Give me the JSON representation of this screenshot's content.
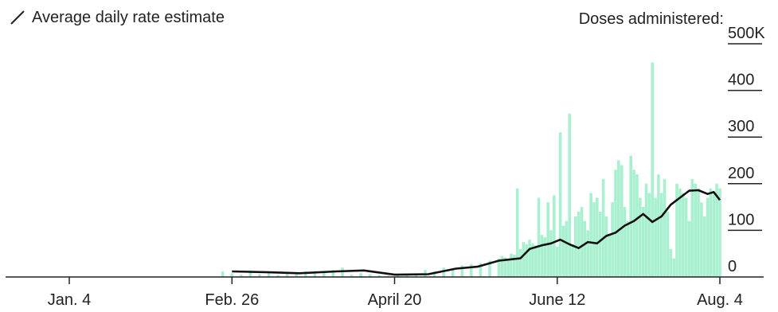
{
  "legend": {
    "line_label": "Average daily rate estimate",
    "icon": "diagonal-line-icon"
  },
  "axis_title": "Doses administered:",
  "colors": {
    "bar": "#a8f0cf",
    "line": "#111111",
    "axis": "#222222",
    "text": "#222222"
  },
  "chart_data": {
    "type": "bar",
    "overlay": "line",
    "x_tick_labels": [
      "Jan. 4",
      "Feb. 26",
      "April 20",
      "June 12",
      "Aug. 4"
    ],
    "y_tick_labels": [
      "500K",
      "400",
      "300",
      "200",
      "100",
      "0"
    ],
    "y_ticks": [
      500,
      400,
      300,
      200,
      100,
      0
    ],
    "ylim": [
      0,
      500
    ],
    "y_unit": "thousand doses",
    "grid": false,
    "legend_position": "top-left",
    "series": [
      {
        "type": "bar",
        "x": [
          "2021-02-23",
          "2021-02-26",
          "2021-03-01",
          "2021-03-04",
          "2021-03-07",
          "2021-03-10",
          "2021-03-13",
          "2021-03-16",
          "2021-03-19",
          "2021-03-22",
          "2021-03-25",
          "2021-03-28",
          "2021-03-31",
          "2021-04-03",
          "2021-04-06",
          "2021-04-09",
          "2021-04-12",
          "2021-04-15",
          "2021-04-18",
          "2021-04-21",
          "2021-04-24",
          "2021-04-27",
          "2021-04-30",
          "2021-05-03",
          "2021-05-06",
          "2021-05-09",
          "2021-05-12",
          "2021-05-15",
          "2021-05-18",
          "2021-05-21",
          "2021-05-24",
          "2021-05-25",
          "2021-05-26",
          "2021-05-27",
          "2021-05-28",
          "2021-05-29",
          "2021-05-30",
          "2021-05-31",
          "2021-06-01",
          "2021-06-02",
          "2021-06-03",
          "2021-06-04",
          "2021-06-05",
          "2021-06-06",
          "2021-06-07",
          "2021-06-08",
          "2021-06-09",
          "2021-06-10",
          "2021-06-11",
          "2021-06-12",
          "2021-06-13",
          "2021-06-14",
          "2021-06-15",
          "2021-06-16",
          "2021-06-17",
          "2021-06-18",
          "2021-06-19",
          "2021-06-20",
          "2021-06-21",
          "2021-06-22",
          "2021-06-23",
          "2021-06-24",
          "2021-06-25",
          "2021-06-26",
          "2021-06-27",
          "2021-06-28",
          "2021-06-29",
          "2021-06-30",
          "2021-07-01",
          "2021-07-02",
          "2021-07-03",
          "2021-07-04",
          "2021-07-05",
          "2021-07-06",
          "2021-07-07",
          "2021-07-08",
          "2021-07-09",
          "2021-07-10",
          "2021-07-11",
          "2021-07-12",
          "2021-07-13",
          "2021-07-14",
          "2021-07-15",
          "2021-07-16",
          "2021-07-17",
          "2021-07-18",
          "2021-07-19",
          "2021-07-20",
          "2021-07-21",
          "2021-07-22",
          "2021-07-23",
          "2021-07-24",
          "2021-07-25",
          "2021-07-26",
          "2021-07-27",
          "2021-07-28",
          "2021-07-29",
          "2021-07-30",
          "2021-07-31",
          "2021-08-01",
          "2021-08-02",
          "2021-08-03",
          "2021-08-04"
        ],
        "values": [
          12,
          8,
          5,
          14,
          6,
          10,
          4,
          9,
          7,
          12,
          8,
          10,
          15,
          20,
          5,
          8,
          6,
          4,
          3,
          5,
          4,
          8,
          15,
          12,
          20,
          18,
          25,
          28,
          30,
          35,
          40,
          45,
          42,
          38,
          50,
          48,
          190,
          60,
          75,
          70,
          80,
          72,
          68,
          170,
          90,
          85,
          160,
          100,
          175,
          65,
          310,
          110,
          120,
          350,
          70,
          130,
          140,
          150,
          120,
          100,
          180,
          160,
          170,
          140,
          210,
          130,
          90,
          160,
          230,
          250,
          240,
          150,
          120,
          260,
          230,
          220,
          170,
          150,
          200,
          180,
          460,
          170,
          220,
          180,
          210,
          140,
          60,
          40,
          200,
          190,
          180,
          170,
          120,
          210,
          200,
          190,
          160,
          130,
          170,
          190,
          180,
          200,
          190
        ]
      },
      {
        "type": "line",
        "x": [
          "2021-02-26",
          "2021-03-10",
          "2021-03-20",
          "2021-04-01",
          "2021-04-10",
          "2021-04-20",
          "2021-05-01",
          "2021-05-10",
          "2021-05-17",
          "2021-05-24",
          "2021-05-31",
          "2021-06-03",
          "2021-06-07",
          "2021-06-10",
          "2021-06-13",
          "2021-06-16",
          "2021-06-19",
          "2021-06-22",
          "2021-06-25",
          "2021-06-28",
          "2021-07-01",
          "2021-07-04",
          "2021-07-07",
          "2021-07-10",
          "2021-07-13",
          "2021-07-16",
          "2021-07-19",
          "2021-07-22",
          "2021-07-25",
          "2021-07-28",
          "2021-07-31",
          "2021-08-02",
          "2021-08-04"
        ],
        "values": [
          12,
          10,
          8,
          12,
          14,
          5,
          6,
          18,
          22,
          35,
          40,
          60,
          68,
          72,
          80,
          70,
          62,
          75,
          72,
          88,
          95,
          110,
          120,
          135,
          118,
          130,
          155,
          170,
          185,
          186,
          178,
          182,
          165
        ]
      }
    ]
  }
}
